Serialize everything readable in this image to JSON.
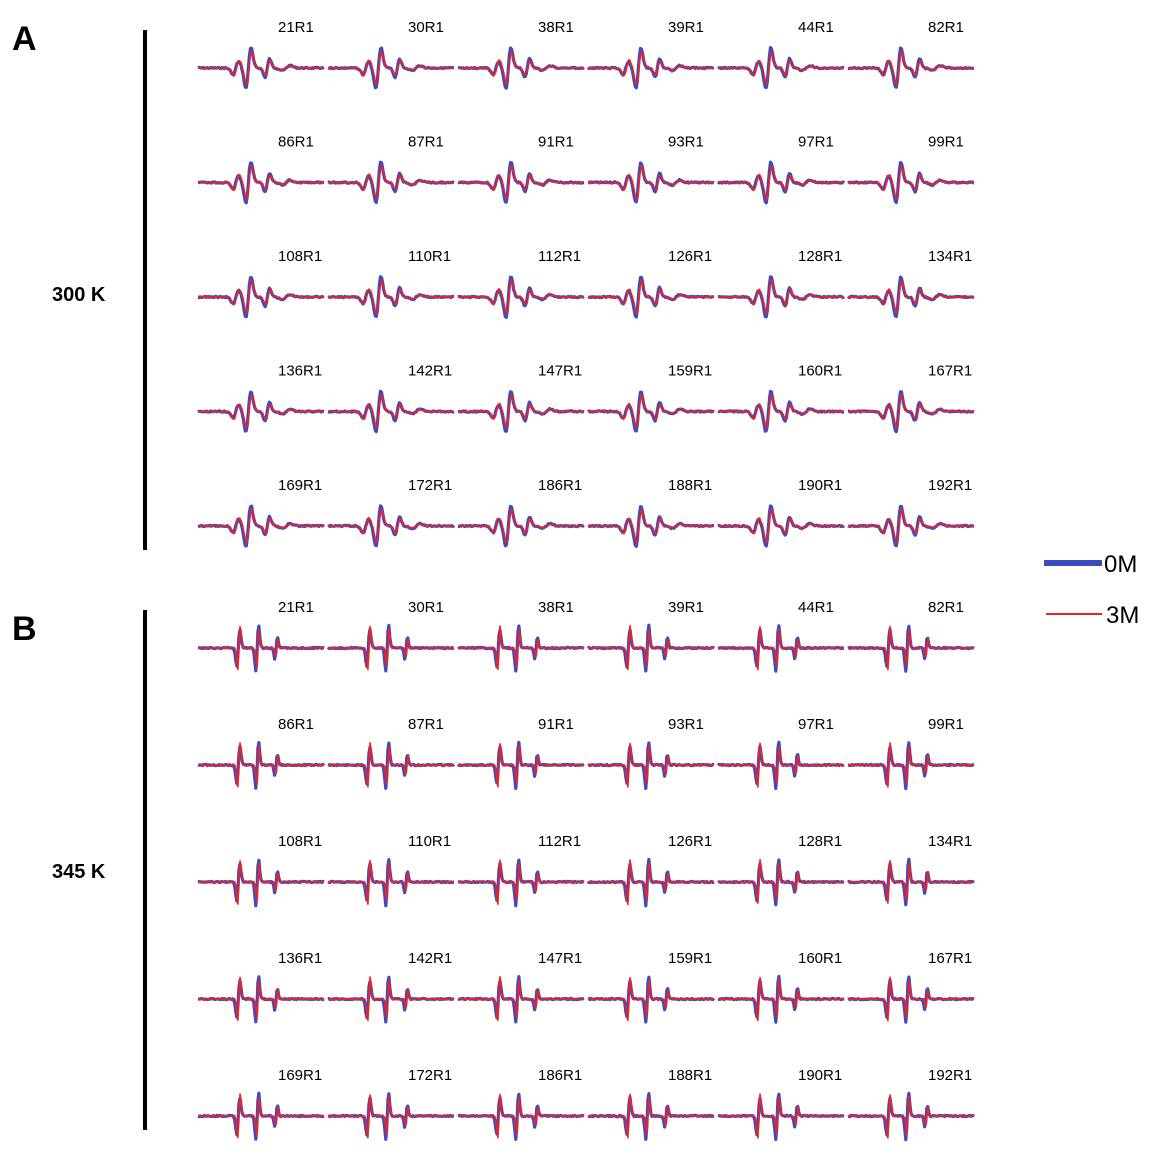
{
  "chart_data": {
    "type": "line",
    "colors": {
      "series_0M": "#3b4cc0",
      "series_3M": "#ee2222"
    },
    "legend": {
      "position": "right",
      "entries": [
        {
          "name": "0M",
          "color": "#3b4cc0"
        },
        {
          "name": "3M",
          "color": "#ee2222"
        }
      ]
    },
    "panels": [
      {
        "letter": "A",
        "temperature": "300 K",
        "sites": [
          "21R1",
          "30R1",
          "38R1",
          "39R1",
          "44R1",
          "82R1",
          "86R1",
          "87R1",
          "91R1",
          "93R1",
          "97R1",
          "99R1",
          "108R1",
          "110R1",
          "112R1",
          "126R1",
          "128R1",
          "134R1",
          "136R1",
          "142R1",
          "147R1",
          "159R1",
          "160R1",
          "167R1",
          "169R1",
          "172R1",
          "186R1",
          "188R1",
          "190R1",
          "192R1"
        ]
      },
      {
        "letter": "B",
        "temperature": "345 K",
        "sites": [
          "21R1",
          "30R1",
          "38R1",
          "39R1",
          "44R1",
          "82R1",
          "86R1",
          "87R1",
          "91R1",
          "93R1",
          "97R1",
          "99R1",
          "108R1",
          "110R1",
          "112R1",
          "126R1",
          "128R1",
          "134R1",
          "136R1",
          "142R1",
          "147R1",
          "159R1",
          "160R1",
          "167R1",
          "169R1",
          "172R1",
          "186R1",
          "188R1",
          "190R1",
          "192R1"
        ]
      }
    ]
  }
}
